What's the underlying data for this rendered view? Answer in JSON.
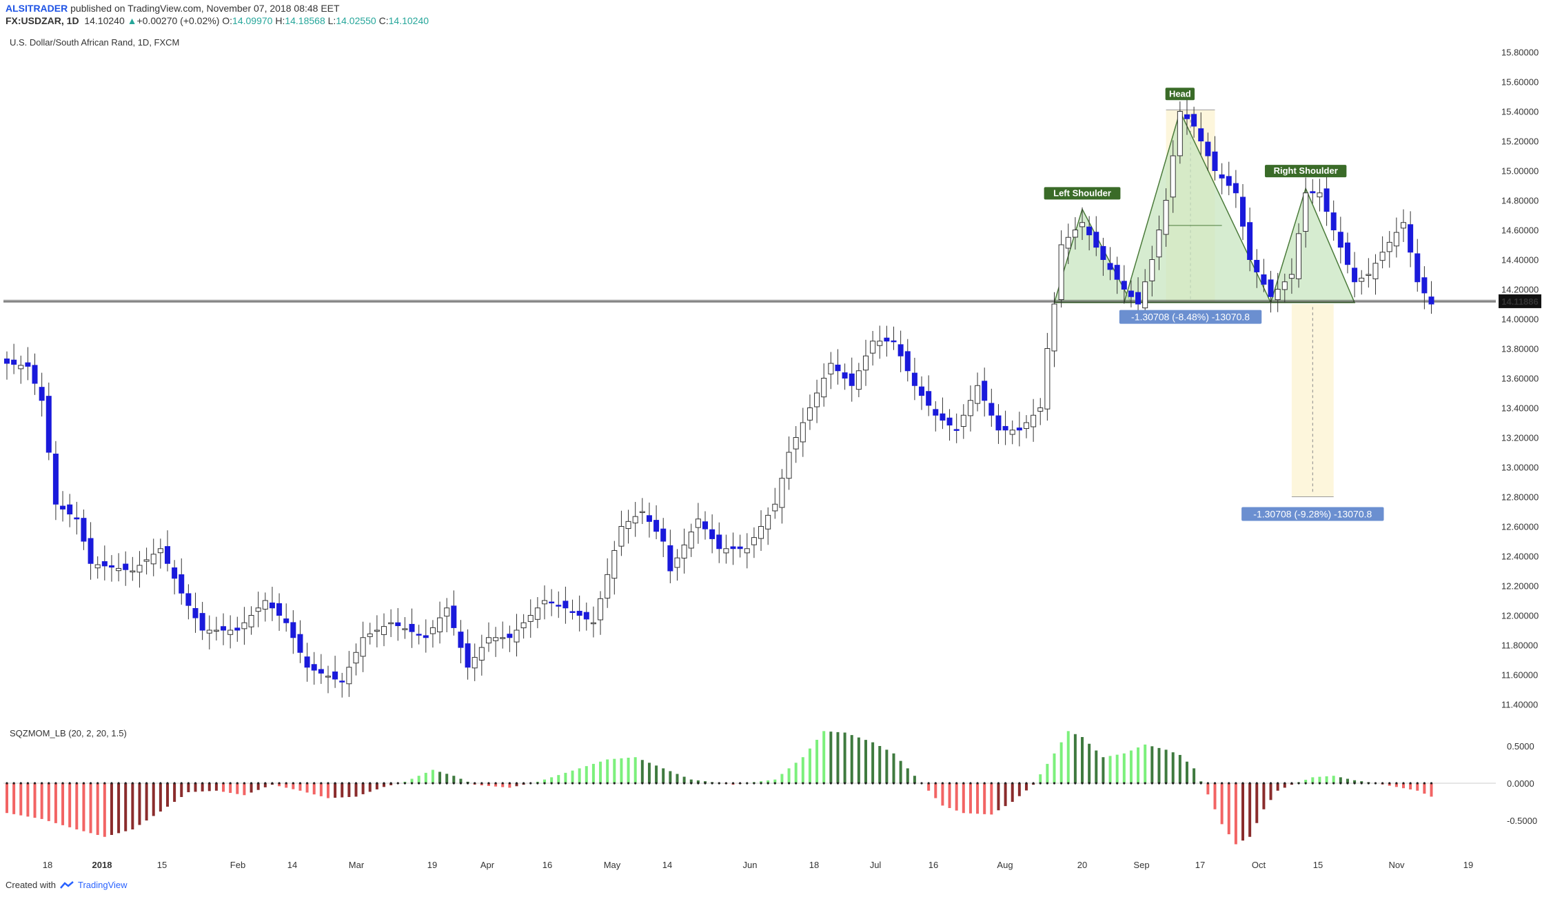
{
  "header": {
    "author": "ALSITRADER",
    "published": "published on TradingView.com, November 07, 2018 08:48 EET",
    "symbol": "FX:USDZAR, 1D",
    "last": "14.10240",
    "change": "+0.00270 (+0.02%)",
    "o_label": "O:",
    "o_val": "14.09970",
    "h_label": "H:",
    "h_val": "14.18568",
    "l_label": "L:",
    "l_val": "14.02550",
    "c_label": "C:",
    "c_val": "14.10240"
  },
  "pane_title": "U.S. Dollar/South African Rand, 1D, FXCM",
  "indicator_title": "SQZMOM_LB (20, 2, 20, 1.5)",
  "footer": {
    "created": "Created with",
    "brand": "TradingView"
  },
  "colors": {
    "up_candle": "#ffffff",
    "down_candle": "#1a1adb",
    "wick": "#333333",
    "pattern_fill": "#c8e6c0",
    "pattern_line": "#4a7a3a",
    "target_zone": "#fdf6dc",
    "label_bg": "#3a6b28",
    "measure_bg": "#6b8fd0",
    "mom_pos_strong": "#7cf07c",
    "mom_pos_weak": "#3f7a3f",
    "mom_neg_strong": "#f26464",
    "mom_neg_weak": "#8a2c2c"
  },
  "chart_data": {
    "type": "candlestick",
    "title": "U.S. Dollar/South African Rand, 1D, FXCM",
    "ylim": [
      11.3,
      15.9
    ],
    "y_ticks": [
      "15.80000",
      "15.60000",
      "15.40000",
      "15.20000",
      "15.00000",
      "14.80000",
      "14.60000",
      "14.40000",
      "14.20000",
      "14.00000",
      "13.80000",
      "13.60000",
      "13.40000",
      "13.20000",
      "13.00000",
      "12.80000",
      "12.60000",
      "12.40000",
      "12.20000",
      "12.00000",
      "11.80000",
      "11.60000",
      "11.40000"
    ],
    "x_ticks": [
      "18",
      "2018",
      "15",
      "Feb",
      "14",
      "Mar",
      "19",
      "Apr",
      "16",
      "May",
      "14",
      "Jun",
      "18",
      "Jul",
      "16",
      "Aug",
      "20",
      "Sep",
      "17",
      "Oct",
      "15",
      "Nov",
      "19"
    ],
    "current_price": "14.11886",
    "candle_count": 205,
    "price_path": [
      [
        0,
        13.7
      ],
      [
        3,
        13.68
      ],
      [
        5,
        13.45
      ],
      [
        7,
        12.75
      ],
      [
        10,
        12.65
      ],
      [
        12,
        12.35
      ],
      [
        18,
        12.3
      ],
      [
        22,
        12.45
      ],
      [
        25,
        12.15
      ],
      [
        28,
        11.9
      ],
      [
        33,
        11.9
      ],
      [
        37,
        12.1
      ],
      [
        40,
        11.95
      ],
      [
        43,
        11.65
      ],
      [
        48,
        11.55
      ],
      [
        51,
        11.85
      ],
      [
        55,
        11.95
      ],
      [
        60,
        11.85
      ],
      [
        63,
        12.05
      ],
      [
        66,
        11.65
      ],
      [
        69,
        11.85
      ],
      [
        72,
        11.85
      ],
      [
        77,
        12.1
      ],
      [
        80,
        12.05
      ],
      [
        84,
        11.95
      ],
      [
        88,
        12.6
      ],
      [
        91,
        12.7
      ],
      [
        94,
        12.5
      ],
      [
        95,
        12.3
      ],
      [
        99,
        12.65
      ],
      [
        102,
        12.45
      ],
      [
        106,
        12.45
      ],
      [
        110,
        12.75
      ],
      [
        112,
        13.1
      ],
      [
        115,
        13.4
      ],
      [
        118,
        13.7
      ],
      [
        121,
        13.55
      ],
      [
        124,
        13.85
      ],
      [
        127,
        13.85
      ],
      [
        130,
        13.55
      ],
      [
        133,
        13.35
      ],
      [
        136,
        13.25
      ],
      [
        139,
        13.55
      ],
      [
        142,
        13.25
      ],
      [
        145,
        13.25
      ],
      [
        148,
        13.4
      ],
      [
        149,
        13.8
      ],
      [
        150,
        14.1
      ],
      [
        151,
        14.5
      ],
      [
        154,
        14.65
      ],
      [
        157,
        14.4
      ],
      [
        160,
        14.2
      ],
      [
        162,
        14.1
      ],
      [
        164,
        14.4
      ],
      [
        166,
        14.8
      ],
      [
        168,
        15.4
      ],
      [
        170,
        15.3
      ],
      [
        173,
        15.0
      ],
      [
        176,
        14.85
      ],
      [
        178,
        14.4
      ],
      [
        181,
        14.15
      ],
      [
        184,
        14.3
      ],
      [
        186,
        14.85
      ],
      [
        188,
        14.85
      ],
      [
        190,
        14.6
      ],
      [
        193,
        14.25
      ],
      [
        195,
        14.3
      ],
      [
        197,
        14.45
      ],
      [
        200,
        14.65
      ],
      [
        202,
        14.25
      ],
      [
        204,
        14.1
      ]
    ],
    "pattern": {
      "labels": [
        "Left Shoulder",
        "Head",
        "Right Shoulder"
      ],
      "neckline": 14.11
    },
    "measurements": [
      {
        "text": "-1.30708 (-8.48%) -13070.8"
      },
      {
        "text": "-1.30708 (-9.28%) -13070.8"
      }
    ],
    "indicator": {
      "name": "SQZMOM_LB (20, 2, 20, 1.5)",
      "ylim": [
        -0.85,
        0.65
      ],
      "y_ticks": [
        "0.5000",
        "0.0000",
        "-0.5000"
      ],
      "momentum_path": [
        [
          0,
          -0.4
        ],
        [
          5,
          -0.48
        ],
        [
          10,
          -0.62
        ],
        [
          14,
          -0.72
        ],
        [
          18,
          -0.62
        ],
        [
          22,
          -0.38
        ],
        [
          26,
          -0.12
        ],
        [
          30,
          -0.1
        ],
        [
          34,
          -0.16
        ],
        [
          38,
          -0.02
        ],
        [
          42,
          -0.1
        ],
        [
          46,
          -0.2
        ],
        [
          50,
          -0.18
        ],
        [
          54,
          -0.05
        ],
        [
          57,
          0.02
        ],
        [
          61,
          0.18
        ],
        [
          64,
          0.1
        ],
        [
          67,
          -0.02
        ],
        [
          72,
          -0.06
        ],
        [
          76,
          0.02
        ],
        [
          82,
          0.2
        ],
        [
          86,
          0.32
        ],
        [
          90,
          0.35
        ],
        [
          94,
          0.2
        ],
        [
          98,
          0.05
        ],
        [
          104,
          -0.02
        ],
        [
          110,
          0.05
        ],
        [
          114,
          0.35
        ],
        [
          117,
          0.7
        ],
        [
          120,
          0.68
        ],
        [
          124,
          0.55
        ],
        [
          127,
          0.4
        ],
        [
          130,
          0.1
        ],
        [
          134,
          -0.3
        ],
        [
          137,
          -0.4
        ],
        [
          141,
          -0.42
        ],
        [
          144,
          -0.25
        ],
        [
          147,
          -0.02
        ],
        [
          150,
          0.4
        ],
        [
          152,
          0.7
        ],
        [
          154,
          0.62
        ],
        [
          157,
          0.35
        ],
        [
          160,
          0.4
        ],
        [
          163,
          0.52
        ],
        [
          166,
          0.45
        ],
        [
          168,
          0.38
        ],
        [
          170,
          0.2
        ],
        [
          172,
          -0.15
        ],
        [
          174,
          -0.55
        ],
        [
          176,
          -0.82
        ],
        [
          178,
          -0.72
        ],
        [
          180,
          -0.35
        ],
        [
          182,
          -0.1
        ],
        [
          184,
          -0.02
        ],
        [
          187,
          0.08
        ],
        [
          190,
          0.1
        ],
        [
          193,
          0.04
        ],
        [
          196,
          0.0
        ],
        [
          199,
          -0.05
        ],
        [
          202,
          -0.1
        ],
        [
          204,
          -0.18
        ]
      ]
    }
  }
}
